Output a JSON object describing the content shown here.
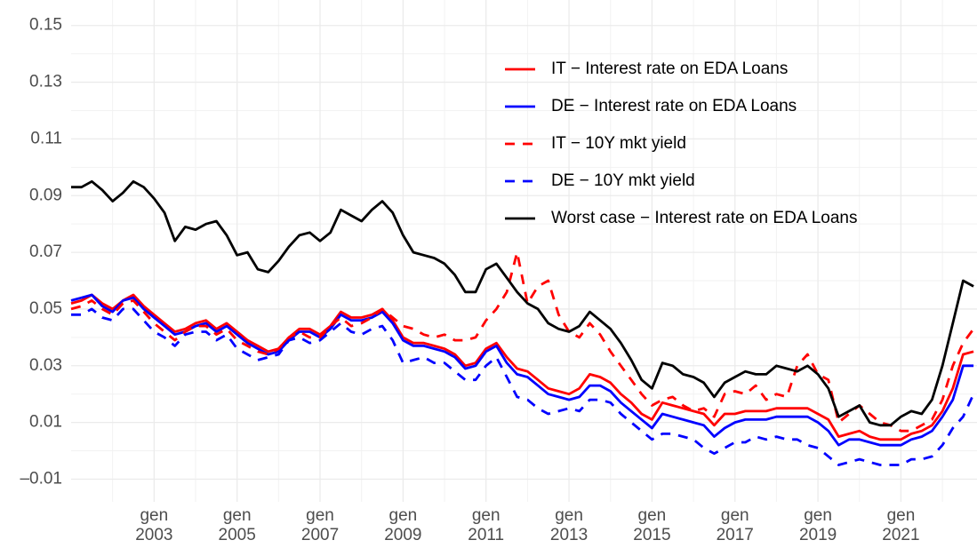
{
  "chart_data": {
    "type": "line",
    "x": [
      "2001-01",
      "2001-04",
      "2001-07",
      "2001-10",
      "2002-01",
      "2002-04",
      "2002-07",
      "2002-10",
      "2003-01",
      "2003-04",
      "2003-07",
      "2003-10",
      "2004-01",
      "2004-04",
      "2004-07",
      "2004-10",
      "2005-01",
      "2005-04",
      "2005-07",
      "2005-10",
      "2006-01",
      "2006-04",
      "2006-07",
      "2006-10",
      "2007-01",
      "2007-04",
      "2007-07",
      "2007-10",
      "2008-01",
      "2008-04",
      "2008-07",
      "2008-10",
      "2009-01",
      "2009-04",
      "2009-07",
      "2009-10",
      "2010-01",
      "2010-04",
      "2010-07",
      "2010-10",
      "2011-01",
      "2011-04",
      "2011-07",
      "2011-10",
      "2012-01",
      "2012-04",
      "2012-07",
      "2012-10",
      "2013-01",
      "2013-04",
      "2013-07",
      "2013-10",
      "2014-01",
      "2014-04",
      "2014-07",
      "2014-10",
      "2015-01",
      "2015-04",
      "2015-07",
      "2015-10",
      "2016-01",
      "2016-04",
      "2016-07",
      "2016-10",
      "2017-01",
      "2017-04",
      "2017-07",
      "2017-10",
      "2018-01",
      "2018-04",
      "2018-07",
      "2018-10",
      "2019-01",
      "2019-04",
      "2019-07",
      "2019-10",
      "2020-01",
      "2020-04",
      "2020-07",
      "2020-10",
      "2021-01",
      "2021-04",
      "2021-07",
      "2021-10",
      "2022-01",
      "2022-04",
      "2022-07",
      "2022-10"
    ],
    "series": [
      {
        "name": "IT − Interest rate on EDA Loans",
        "color": "#ff0000",
        "linestyle": "solid",
        "values": [
          0.052,
          0.053,
          0.055,
          0.052,
          0.05,
          0.053,
          0.055,
          0.051,
          0.048,
          0.045,
          0.042,
          0.043,
          0.045,
          0.046,
          0.043,
          0.045,
          0.042,
          0.039,
          0.037,
          0.035,
          0.036,
          0.04,
          0.043,
          0.043,
          0.041,
          0.044,
          0.049,
          0.047,
          0.047,
          0.048,
          0.05,
          0.046,
          0.04,
          0.038,
          0.038,
          0.037,
          0.036,
          0.034,
          0.03,
          0.031,
          0.036,
          0.038,
          0.033,
          0.029,
          0.028,
          0.025,
          0.022,
          0.021,
          0.02,
          0.022,
          0.027,
          0.026,
          0.024,
          0.02,
          0.017,
          0.013,
          0.011,
          0.017,
          0.016,
          0.015,
          0.014,
          0.013,
          0.009,
          0.013,
          0.013,
          0.014,
          0.014,
          0.014,
          0.015,
          0.015,
          0.015,
          0.015,
          0.013,
          0.011,
          0.005,
          0.006,
          0.007,
          0.005,
          0.004,
          0.004,
          0.004,
          0.006,
          0.007,
          0.009,
          0.014,
          0.022,
          0.034,
          0.035
        ]
      },
      {
        "name": "DE − Interest rate on EDA Loans",
        "color": "#0000ff",
        "linestyle": "solid",
        "values": [
          0.053,
          0.054,
          0.055,
          0.051,
          0.049,
          0.053,
          0.054,
          0.05,
          0.047,
          0.044,
          0.041,
          0.042,
          0.044,
          0.045,
          0.042,
          0.044,
          0.041,
          0.038,
          0.036,
          0.034,
          0.035,
          0.039,
          0.042,
          0.042,
          0.04,
          0.043,
          0.048,
          0.046,
          0.046,
          0.047,
          0.049,
          0.045,
          0.039,
          0.037,
          0.037,
          0.036,
          0.035,
          0.033,
          0.029,
          0.03,
          0.035,
          0.037,
          0.031,
          0.027,
          0.026,
          0.023,
          0.02,
          0.019,
          0.018,
          0.019,
          0.023,
          0.023,
          0.021,
          0.017,
          0.014,
          0.011,
          0.008,
          0.013,
          0.012,
          0.011,
          0.01,
          0.009,
          0.005,
          0.008,
          0.01,
          0.011,
          0.011,
          0.011,
          0.012,
          0.012,
          0.012,
          0.012,
          0.01,
          0.007,
          0.002,
          0.004,
          0.004,
          0.003,
          0.002,
          0.002,
          0.002,
          0.004,
          0.005,
          0.007,
          0.012,
          0.018,
          0.03,
          0.03
        ]
      },
      {
        "name": "IT − 10Y mkt yield",
        "color": "#ff0000",
        "linestyle": "dashed",
        "values": [
          0.05,
          0.051,
          0.053,
          0.05,
          0.048,
          0.052,
          0.053,
          0.049,
          0.045,
          0.042,
          0.039,
          0.042,
          0.044,
          0.044,
          0.041,
          0.043,
          0.039,
          0.037,
          0.035,
          0.034,
          0.036,
          0.04,
          0.042,
          0.04,
          0.04,
          0.044,
          0.047,
          0.044,
          0.045,
          0.047,
          0.05,
          0.047,
          0.044,
          0.043,
          0.041,
          0.04,
          0.041,
          0.039,
          0.039,
          0.04,
          0.046,
          0.05,
          0.056,
          0.07,
          0.052,
          0.058,
          0.06,
          0.048,
          0.042,
          0.04,
          0.045,
          0.041,
          0.035,
          0.03,
          0.025,
          0.02,
          0.016,
          0.018,
          0.019,
          0.016,
          0.014,
          0.015,
          0.012,
          0.02,
          0.021,
          0.02,
          0.023,
          0.018,
          0.02,
          0.019,
          0.03,
          0.034,
          0.027,
          0.025,
          0.01,
          0.013,
          0.016,
          0.013,
          0.01,
          0.009,
          0.007,
          0.007,
          0.009,
          0.011,
          0.018,
          0.03,
          0.038,
          0.043
        ]
      },
      {
        "name": "DE − 10Y mkt yield",
        "color": "#0000ff",
        "linestyle": "dashed",
        "values": [
          0.048,
          0.048,
          0.05,
          0.047,
          0.046,
          0.05,
          0.05,
          0.046,
          0.042,
          0.04,
          0.037,
          0.041,
          0.042,
          0.042,
          0.039,
          0.041,
          0.036,
          0.034,
          0.032,
          0.033,
          0.034,
          0.039,
          0.04,
          0.038,
          0.039,
          0.042,
          0.045,
          0.042,
          0.041,
          0.043,
          0.044,
          0.039,
          0.031,
          0.032,
          0.033,
          0.031,
          0.031,
          0.028,
          0.025,
          0.025,
          0.03,
          0.033,
          0.026,
          0.019,
          0.018,
          0.015,
          0.013,
          0.014,
          0.015,
          0.014,
          0.018,
          0.018,
          0.017,
          0.013,
          0.01,
          0.007,
          0.004,
          0.006,
          0.006,
          0.005,
          0.004,
          0.001,
          -0.001,
          0.001,
          0.003,
          0.003,
          0.005,
          0.004,
          0.005,
          0.004,
          0.004,
          0.002,
          0.001,
          -0.002,
          -0.005,
          -0.004,
          -0.003,
          -0.004,
          -0.005,
          -0.005,
          -0.005,
          -0.003,
          -0.003,
          -0.002,
          0.002,
          0.008,
          0.012,
          0.02
        ]
      },
      {
        "name": "Worst case − Interest rate on EDA Loans",
        "color": "#000000",
        "linestyle": "solid",
        "values": [
          0.093,
          0.093,
          0.095,
          0.092,
          0.088,
          0.091,
          0.095,
          0.093,
          0.089,
          0.084,
          0.074,
          0.079,
          0.078,
          0.08,
          0.081,
          0.076,
          0.069,
          0.07,
          0.064,
          0.063,
          0.067,
          0.072,
          0.076,
          0.077,
          0.074,
          0.077,
          0.085,
          0.083,
          0.081,
          0.085,
          0.088,
          0.084,
          0.076,
          0.07,
          0.069,
          0.068,
          0.066,
          0.062,
          0.056,
          0.056,
          0.064,
          0.066,
          0.061,
          0.056,
          0.052,
          0.05,
          0.045,
          0.043,
          0.042,
          0.044,
          0.049,
          0.046,
          0.043,
          0.038,
          0.032,
          0.025,
          0.022,
          0.031,
          0.03,
          0.027,
          0.026,
          0.024,
          0.019,
          0.024,
          0.026,
          0.028,
          0.027,
          0.027,
          0.03,
          0.029,
          0.028,
          0.03,
          0.027,
          0.022,
          0.012,
          0.014,
          0.016,
          0.01,
          0.009,
          0.009,
          0.012,
          0.014,
          0.013,
          0.018,
          0.03,
          0.045,
          0.06,
          0.058
        ]
      }
    ],
    "xlim": [
      "2001-01",
      "2022-11"
    ],
    "xticks": [
      {
        "value": "2003-01",
        "label": "gen\n2003"
      },
      {
        "value": "2005-01",
        "label": "gen\n2005"
      },
      {
        "value": "2007-01",
        "label": "gen\n2007"
      },
      {
        "value": "2009-01",
        "label": "gen\n2009"
      },
      {
        "value": "2011-01",
        "label": "gen\n2011"
      },
      {
        "value": "2013-01",
        "label": "gen\n2013"
      },
      {
        "value": "2015-01",
        "label": "gen\n2015"
      },
      {
        "value": "2017-01",
        "label": "gen\n2017"
      },
      {
        "value": "2019-01",
        "label": "gen\n2019"
      },
      {
        "value": "2021-01",
        "label": "gen\n2021"
      }
    ],
    "ylim": [
      -0.018,
      0.159
    ],
    "yticks": [
      {
        "value": -0.01,
        "label": "–0.01"
      },
      0.01,
      0.03,
      0.05,
      0.07,
      0.09,
      0.11,
      0.13,
      0.15
    ],
    "grid": true,
    "legend": "top-right"
  }
}
